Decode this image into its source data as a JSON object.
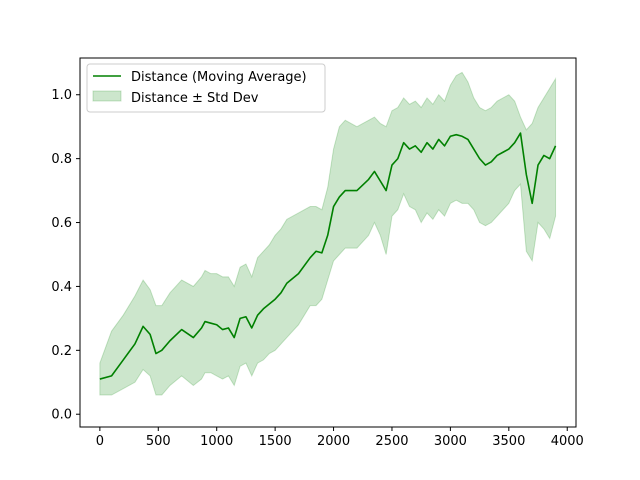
{
  "chart_data": {
    "type": "line",
    "title": "",
    "xlabel": "",
    "ylabel": "",
    "xlim": [
      -170,
      4075
    ],
    "ylim": [
      -0.04,
      1.115
    ],
    "xticks": [
      0,
      500,
      1000,
      1500,
      2000,
      2500,
      3000,
      3500,
      4000
    ],
    "yticks": [
      0.0,
      0.2,
      0.4,
      0.6,
      0.8,
      1.0
    ],
    "xtick_labels": [
      "0",
      "500",
      "1000",
      "1500",
      "2000",
      "2500",
      "3000",
      "3500",
      "4000"
    ],
    "ytick_labels": [
      "0.0",
      "0.2",
      "0.4",
      "0.6",
      "0.8",
      "1.0"
    ],
    "grid": false,
    "legend_position": "top-left",
    "colors": {
      "line": "#008000",
      "band": "#008000",
      "axes": "#000000"
    },
    "series": [
      {
        "name": "Distance (Moving Average)",
        "kind": "line",
        "x": [
          0,
          100,
          200,
          300,
          370,
          430,
          480,
          530,
          600,
          700,
          800,
          870,
          900,
          950,
          1000,
          1050,
          1100,
          1150,
          1200,
          1250,
          1300,
          1350,
          1400,
          1450,
          1500,
          1550,
          1600,
          1700,
          1800,
          1850,
          1900,
          1950,
          2000,
          2050,
          2100,
          2200,
          2300,
          2350,
          2400,
          2450,
          2500,
          2550,
          2600,
          2650,
          2700,
          2750,
          2800,
          2850,
          2900,
          2950,
          3000,
          3050,
          3100,
          3150,
          3200,
          3250,
          3300,
          3350,
          3400,
          3450,
          3500,
          3550,
          3600,
          3650,
          3700,
          3750,
          3800,
          3850,
          3900
        ],
        "y": [
          0.11,
          0.12,
          0.17,
          0.22,
          0.275,
          0.25,
          0.19,
          0.2,
          0.23,
          0.265,
          0.24,
          0.27,
          0.29,
          0.285,
          0.28,
          0.265,
          0.27,
          0.24,
          0.3,
          0.305,
          0.27,
          0.31,
          0.33,
          0.345,
          0.36,
          0.38,
          0.41,
          0.44,
          0.49,
          0.51,
          0.505,
          0.56,
          0.65,
          0.68,
          0.7,
          0.7,
          0.735,
          0.76,
          0.73,
          0.7,
          0.78,
          0.8,
          0.85,
          0.83,
          0.84,
          0.82,
          0.85,
          0.83,
          0.86,
          0.84,
          0.87,
          0.875,
          0.87,
          0.86,
          0.83,
          0.8,
          0.78,
          0.79,
          0.81,
          0.82,
          0.83,
          0.85,
          0.88,
          0.75,
          0.66,
          0.78,
          0.81,
          0.8,
          0.84
        ]
      },
      {
        "name": "Distance ± Std Dev",
        "kind": "band",
        "x": [
          0,
          100,
          200,
          300,
          370,
          430,
          480,
          530,
          600,
          700,
          800,
          870,
          900,
          950,
          1000,
          1050,
          1100,
          1150,
          1200,
          1250,
          1300,
          1350,
          1400,
          1450,
          1500,
          1550,
          1600,
          1700,
          1800,
          1850,
          1900,
          1950,
          2000,
          2050,
          2100,
          2200,
          2300,
          2350,
          2400,
          2450,
          2500,
          2550,
          2600,
          2650,
          2700,
          2750,
          2800,
          2850,
          2900,
          2950,
          3000,
          3050,
          3100,
          3150,
          3200,
          3250,
          3300,
          3350,
          3400,
          3450,
          3500,
          3550,
          3600,
          3650,
          3700,
          3750,
          3800,
          3850,
          3900
        ],
        "upper": [
          0.16,
          0.26,
          0.31,
          0.37,
          0.42,
          0.39,
          0.34,
          0.34,
          0.38,
          0.42,
          0.4,
          0.43,
          0.45,
          0.44,
          0.44,
          0.43,
          0.43,
          0.4,
          0.46,
          0.47,
          0.43,
          0.49,
          0.51,
          0.53,
          0.56,
          0.58,
          0.61,
          0.63,
          0.65,
          0.65,
          0.64,
          0.71,
          0.83,
          0.9,
          0.92,
          0.9,
          0.92,
          0.93,
          0.91,
          0.9,
          0.95,
          0.96,
          0.99,
          0.97,
          0.98,
          0.96,
          0.99,
          0.97,
          1.0,
          0.98,
          1.03,
          1.06,
          1.07,
          1.04,
          0.99,
          0.96,
          0.95,
          0.96,
          0.98,
          0.99,
          1.0,
          0.98,
          0.93,
          0.89,
          0.91,
          0.96,
          0.99,
          1.02,
          1.05
        ],
        "lower": [
          0.06,
          0.06,
          0.08,
          0.1,
          0.14,
          0.12,
          0.06,
          0.06,
          0.09,
          0.12,
          0.09,
          0.11,
          0.13,
          0.13,
          0.12,
          0.11,
          0.12,
          0.09,
          0.15,
          0.16,
          0.12,
          0.16,
          0.17,
          0.19,
          0.2,
          0.22,
          0.24,
          0.28,
          0.34,
          0.34,
          0.36,
          0.42,
          0.48,
          0.5,
          0.52,
          0.52,
          0.56,
          0.6,
          0.56,
          0.5,
          0.62,
          0.64,
          0.69,
          0.65,
          0.64,
          0.6,
          0.63,
          0.61,
          0.64,
          0.62,
          0.66,
          0.67,
          0.66,
          0.66,
          0.64,
          0.6,
          0.59,
          0.6,
          0.62,
          0.64,
          0.66,
          0.7,
          0.72,
          0.51,
          0.48,
          0.6,
          0.58,
          0.55,
          0.62
        ]
      }
    ]
  }
}
